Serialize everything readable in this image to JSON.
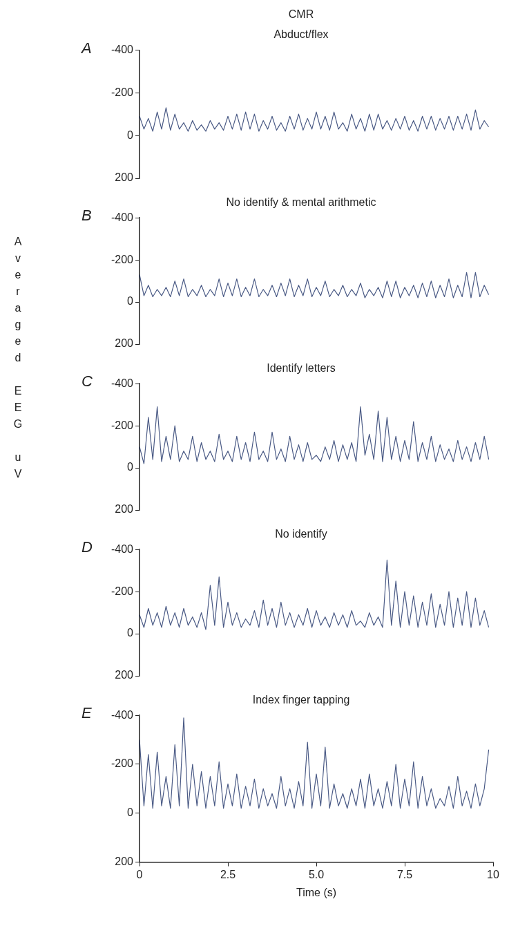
{
  "chart_data": [
    {
      "type": "line",
      "title": "CMR",
      "subtitle": "Abduct/flex",
      "annotations": [
        "A"
      ],
      "color": "#4a5a85",
      "xlim": [
        0,
        10
      ],
      "ylim": [
        200,
        -400
      ],
      "yticks": [
        -400,
        -200,
        0,
        200
      ],
      "tick_labels": "y",
      "x": [
        0,
        0.125,
        0.25,
        0.375,
        0.5,
        0.625,
        0.75,
        0.875,
        1,
        1.125,
        1.25,
        1.375,
        1.5,
        1.625,
        1.75,
        1.875,
        2,
        2.125,
        2.25,
        2.375,
        2.5,
        2.625,
        2.75,
        2.875,
        3,
        3.125,
        3.25,
        3.375,
        3.5,
        3.625,
        3.75,
        3.875,
        4,
        4.125,
        4.25,
        4.375,
        4.5,
        4.625,
        4.75,
        4.875,
        5,
        5.125,
        5.25,
        5.375,
        5.5,
        5.625,
        5.75,
        5.875,
        6,
        6.125,
        6.25,
        6.375,
        6.5,
        6.625,
        6.75,
        6.875,
        7,
        7.125,
        7.25,
        7.375,
        7.5,
        7.625,
        7.75,
        7.875,
        8,
        8.125,
        8.25,
        8.375,
        8.5,
        8.625,
        8.75,
        8.875,
        9,
        9.125,
        9.25,
        9.375,
        9.5,
        9.625,
        9.75,
        9.875
      ],
      "values": [
        -90,
        -30,
        -80,
        -20,
        -110,
        -30,
        -130,
        -25,
        -100,
        -30,
        -60,
        -20,
        -70,
        -25,
        -50,
        -20,
        -70,
        -30,
        -60,
        -25,
        -90,
        -30,
        -100,
        -25,
        -110,
        -30,
        -100,
        -20,
        -70,
        -30,
        -90,
        -25,
        -60,
        -20,
        -90,
        -30,
        -100,
        -25,
        -80,
        -30,
        -110,
        -30,
        -90,
        -25,
        -110,
        -30,
        -60,
        -20,
        -100,
        -30,
        -80,
        -20,
        -100,
        -25,
        -100,
        -30,
        -70,
        -25,
        -80,
        -30,
        -90,
        -25,
        -70,
        -20,
        -90,
        -30,
        -90,
        -25,
        -80,
        -30,
        -90,
        -25,
        -90,
        -30,
        -100,
        -25,
        -120,
        -30,
        -70,
        -40
      ]
    },
    {
      "type": "line",
      "title": "No identify & mental arithmetic",
      "annotations": [
        "B"
      ],
      "color": "#4a5a85",
      "xlim": [
        0,
        10
      ],
      "ylim": [
        200,
        -400
      ],
      "yticks": [
        -400,
        -200,
        0,
        200
      ],
      "tick_labels": "y",
      "x": [
        0,
        0.125,
        0.25,
        0.375,
        0.5,
        0.625,
        0.75,
        0.875,
        1,
        1.125,
        1.25,
        1.375,
        1.5,
        1.625,
        1.75,
        1.875,
        2,
        2.125,
        2.25,
        2.375,
        2.5,
        2.625,
        2.75,
        2.875,
        3,
        3.125,
        3.25,
        3.375,
        3.5,
        3.625,
        3.75,
        3.875,
        4,
        4.125,
        4.25,
        4.375,
        4.5,
        4.625,
        4.75,
        4.875,
        5,
        5.125,
        5.25,
        5.375,
        5.5,
        5.625,
        5.75,
        5.875,
        6,
        6.125,
        6.25,
        6.375,
        6.5,
        6.625,
        6.75,
        6.875,
        7,
        7.125,
        7.25,
        7.375,
        7.5,
        7.625,
        7.75,
        7.875,
        8,
        8.125,
        8.25,
        8.375,
        8.5,
        8.625,
        8.75,
        8.875,
        9,
        9.125,
        9.25,
        9.375,
        9.5,
        9.625,
        9.75,
        9.875
      ],
      "values": [
        -130,
        -30,
        -80,
        -25,
        -60,
        -30,
        -70,
        -25,
        -100,
        -30,
        -110,
        -25,
        -60,
        -30,
        -80,
        -25,
        -60,
        -30,
        -110,
        -25,
        -90,
        -30,
        -110,
        -25,
        -70,
        -30,
        -110,
        -25,
        -60,
        -30,
        -80,
        -25,
        -90,
        -30,
        -110,
        -25,
        -80,
        -30,
        -110,
        -25,
        -70,
        -30,
        -100,
        -25,
        -60,
        -30,
        -80,
        -25,
        -60,
        -30,
        -90,
        -20,
        -60,
        -30,
        -70,
        -20,
        -100,
        -25,
        -100,
        -20,
        -70,
        -30,
        -80,
        -20,
        -90,
        -25,
        -100,
        -20,
        -80,
        -25,
        -110,
        -20,
        -80,
        -25,
        -140,
        -20,
        -140,
        -25,
        -80,
        -35
      ]
    },
    {
      "type": "line",
      "title": "Identify letters",
      "ylabel": "Averaged EEG uV",
      "annotations": [
        "C"
      ],
      "color": "#4a5a85",
      "xlim": [
        0,
        10
      ],
      "ylim": [
        200,
        -400
      ],
      "yticks": [
        -400,
        -200,
        0,
        200
      ],
      "tick_labels": "y",
      "x": [
        0,
        0.125,
        0.25,
        0.375,
        0.5,
        0.625,
        0.75,
        0.875,
        1,
        1.125,
        1.25,
        1.375,
        1.5,
        1.625,
        1.75,
        1.875,
        2,
        2.125,
        2.25,
        2.375,
        2.5,
        2.625,
        2.75,
        2.875,
        3,
        3.125,
        3.25,
        3.375,
        3.5,
        3.625,
        3.75,
        3.875,
        4,
        4.125,
        4.25,
        4.375,
        4.5,
        4.625,
        4.75,
        4.875,
        5,
        5.125,
        5.25,
        5.375,
        5.5,
        5.625,
        5.75,
        5.875,
        6,
        6.125,
        6.25,
        6.375,
        6.5,
        6.625,
        6.75,
        6.875,
        7,
        7.125,
        7.25,
        7.375,
        7.5,
        7.625,
        7.75,
        7.875,
        8,
        8.125,
        8.25,
        8.375,
        8.5,
        8.625,
        8.75,
        8.875,
        9,
        9.125,
        9.25,
        9.375,
        9.5,
        9.625,
        9.75,
        9.875
      ],
      "values": [
        -100,
        -20,
        -240,
        -40,
        -290,
        -30,
        -150,
        -40,
        -200,
        -30,
        -80,
        -40,
        -150,
        -30,
        -120,
        -40,
        -80,
        -30,
        -160,
        -40,
        -80,
        -30,
        -150,
        -40,
        -120,
        -30,
        -170,
        -40,
        -80,
        -30,
        -170,
        -40,
        -90,
        -30,
        -150,
        -40,
        -110,
        -30,
        -120,
        -40,
        -60,
        -30,
        -100,
        -40,
        -130,
        -30,
        -110,
        -40,
        -120,
        -30,
        -290,
        -60,
        -160,
        -40,
        -270,
        -30,
        -240,
        -40,
        -150,
        -30,
        -130,
        -40,
        -220,
        -30,
        -120,
        -40,
        -150,
        -30,
        -110,
        -40,
        -90,
        -30,
        -130,
        -40,
        -100,
        -30,
        -120,
        -40,
        -150,
        -40
      ]
    },
    {
      "type": "line",
      "title": "No identify",
      "annotations": [
        "D"
      ],
      "color": "#4a5a85",
      "xlim": [
        0,
        10
      ],
      "ylim": [
        200,
        -400
      ],
      "yticks": [
        -400,
        -200,
        0,
        200
      ],
      "tick_labels": "y",
      "x": [
        0,
        0.125,
        0.25,
        0.375,
        0.5,
        0.625,
        0.75,
        0.875,
        1,
        1.125,
        1.25,
        1.375,
        1.5,
        1.625,
        1.75,
        1.875,
        2,
        2.125,
        2.25,
        2.375,
        2.5,
        2.625,
        2.75,
        2.875,
        3,
        3.125,
        3.25,
        3.375,
        3.5,
        3.625,
        3.75,
        3.875,
        4,
        4.125,
        4.25,
        4.375,
        4.5,
        4.625,
        4.75,
        4.875,
        5,
        5.125,
        5.25,
        5.375,
        5.5,
        5.625,
        5.75,
        5.875,
        6,
        6.125,
        6.25,
        6.375,
        6.5,
        6.625,
        6.75,
        6.875,
        7,
        7.125,
        7.25,
        7.375,
        7.5,
        7.625,
        7.75,
        7.875,
        8,
        8.125,
        8.25,
        8.375,
        8.5,
        8.625,
        8.75,
        8.875,
        9,
        9.125,
        9.25,
        9.375,
        9.5,
        9.625,
        9.75,
        9.875
      ],
      "values": [
        -90,
        -30,
        -120,
        -40,
        -100,
        -30,
        -130,
        -40,
        -100,
        -30,
        -120,
        -40,
        -80,
        -30,
        -100,
        -20,
        -230,
        -40,
        -270,
        -30,
        -150,
        -40,
        -100,
        -30,
        -70,
        -40,
        -110,
        -30,
        -160,
        -40,
        -120,
        -30,
        -150,
        -40,
        -100,
        -30,
        -90,
        -40,
        -120,
        -30,
        -110,
        -40,
        -80,
        -30,
        -100,
        -40,
        -90,
        -30,
        -110,
        -40,
        -60,
        -30,
        -100,
        -40,
        -80,
        -30,
        -350,
        -40,
        -250,
        -30,
        -200,
        -40,
        -180,
        -30,
        -150,
        -40,
        -190,
        -30,
        -140,
        -40,
        -200,
        -30,
        -170,
        -40,
        -200,
        -30,
        -170,
        -40,
        -110,
        -30
      ]
    },
    {
      "type": "line",
      "title": "Index finger tapping",
      "xlabel": "Time (s)",
      "annotations": [
        "E"
      ],
      "color": "#4a5a85",
      "xlim": [
        0,
        10
      ],
      "xticks": [
        0,
        2.5,
        {
          "value": 5,
          "label": "5.0"
        },
        7.5,
        10
      ],
      "ylim": [
        200,
        -400
      ],
      "yticks": [
        -400,
        -200,
        0,
        200
      ],
      "x": [
        0,
        0.125,
        0.25,
        0.375,
        0.5,
        0.625,
        0.75,
        0.875,
        1,
        1.125,
        1.25,
        1.375,
        1.5,
        1.625,
        1.75,
        1.875,
        2,
        2.125,
        2.25,
        2.375,
        2.5,
        2.625,
        2.75,
        2.875,
        3,
        3.125,
        3.25,
        3.375,
        3.5,
        3.625,
        3.75,
        3.875,
        4,
        4.125,
        4.25,
        4.375,
        4.5,
        4.625,
        4.75,
        4.875,
        5,
        5.125,
        5.25,
        5.375,
        5.5,
        5.625,
        5.75,
        5.875,
        6,
        6.125,
        6.25,
        6.375,
        6.5,
        6.625,
        6.75,
        6.875,
        7,
        7.125,
        7.25,
        7.375,
        7.5,
        7.625,
        7.75,
        7.875,
        8,
        8.125,
        8.25,
        8.375,
        8.5,
        8.625,
        8.75,
        8.875,
        9,
        9.125,
        9.25,
        9.375,
        9.5,
        9.625,
        9.75,
        9.875
      ],
      "values": [
        -300,
        -30,
        -240,
        -20,
        -250,
        -30,
        -150,
        -20,
        -280,
        -30,
        -390,
        -20,
        -200,
        -30,
        -170,
        -20,
        -150,
        -30,
        -210,
        -20,
        -120,
        -30,
        -160,
        -20,
        -110,
        -30,
        -140,
        -20,
        -100,
        -30,
        -80,
        -20,
        -150,
        -30,
        -100,
        -20,
        -130,
        -30,
        -290,
        -20,
        -160,
        -30,
        -270,
        -20,
        -120,
        -30,
        -80,
        -20,
        -100,
        -30,
        -140,
        -20,
        -160,
        -30,
        -100,
        -20,
        -130,
        -30,
        -200,
        -20,
        -140,
        -30,
        -210,
        -20,
        -150,
        -30,
        -100,
        -20,
        -60,
        -30,
        -110,
        -20,
        -150,
        -30,
        -90,
        -20,
        -120,
        -30,
        -100,
        -260
      ]
    }
  ]
}
